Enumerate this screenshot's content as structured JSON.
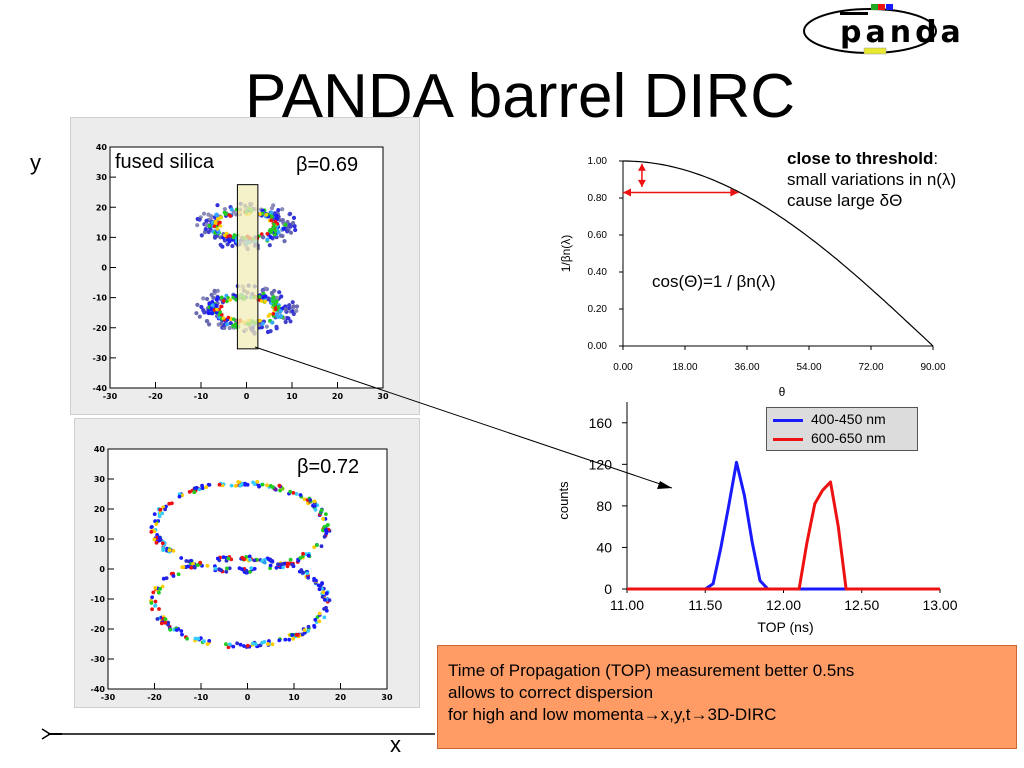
{
  "slide": {
    "title": "PANDA barrel DIRC",
    "logo_text": "panda",
    "y_axis_letter": "y",
    "x_axis_letter": "x"
  },
  "ring_plots": {
    "top": {
      "material_label": "fused silica",
      "beta_label": "β=0.69",
      "x_ticks": [
        "-30",
        "-20",
        "-10",
        "0",
        "10",
        "20",
        "30"
      ],
      "y_ticks": [
        "40",
        "30",
        "20",
        "10",
        "0",
        "-10",
        "-20",
        "-30",
        "-40"
      ]
    },
    "bottom": {
      "beta_label": "β=0.72",
      "x_ticks": [
        "-30",
        "-20",
        "-10",
        "0",
        "10",
        "20",
        "30"
      ],
      "y_ticks": [
        "40",
        "30",
        "20",
        "10",
        "0",
        "-10",
        "-20",
        "-30",
        "-40"
      ]
    }
  },
  "threshold_note": {
    "bold": "close to threshold",
    "colon": ":",
    "line2": "small variations in n(λ)",
    "line3": "cause large δΘ"
  },
  "formula": "cos(Θ)=1 / βn(λ)",
  "top_box": {
    "line1": "Time of Propagation (TOP) measurement better 0.5ns",
    "line2": "allows to correct dispersion",
    "line3": "for high and low momenta→x,y,t→3D-DIRC"
  },
  "colors": {
    "blue": "#1a1aff",
    "red": "#ee1111",
    "box_fill": "#ff9c66",
    "highlight": "#f2eeb8"
  },
  "chart_data": [
    {
      "type": "line",
      "title": "",
      "xlabel": "θ",
      "ylabel": "1/βn(λ)",
      "x_ticks": [
        "0.00",
        "18.00",
        "36.00",
        "54.00",
        "72.00",
        "90.00"
      ],
      "y_ticks": [
        "0.00",
        "0.20",
        "0.40",
        "0.60",
        "0.80",
        "1.00"
      ],
      "xlim": [
        0,
        90
      ],
      "ylim": [
        0,
        1
      ],
      "function": "cos",
      "x": [
        0,
        10,
        20,
        30,
        40,
        50,
        60,
        70,
        80,
        90
      ],
      "y": [
        1.0,
        0.985,
        0.94,
        0.866,
        0.766,
        0.643,
        0.5,
        0.342,
        0.174,
        0.0
      ]
    },
    {
      "type": "line",
      "title": "",
      "xlabel": "TOP (ns)",
      "ylabel": "counts",
      "x_ticks": [
        "11.00",
        "11.50",
        "12.00",
        "12.50",
        "13.00"
      ],
      "y_ticks": [
        "0",
        "40",
        "80",
        "120",
        "160"
      ],
      "xlim": [
        11,
        13
      ],
      "ylim": [
        0,
        180
      ],
      "series": [
        {
          "name": "400-450 nm",
          "color": "#1a1aff",
          "x": [
            11.0,
            11.5,
            11.55,
            11.6,
            11.65,
            11.7,
            11.75,
            11.8,
            11.85,
            11.9,
            13.0
          ],
          "y": [
            0,
            0,
            5,
            40,
            80,
            122,
            90,
            45,
            8,
            0,
            0
          ]
        },
        {
          "name": "600-650 nm",
          "color": "#ee1111",
          "x": [
            11.0,
            12.0,
            12.1,
            12.15,
            12.2,
            12.25,
            12.3,
            12.35,
            12.4,
            13.0
          ],
          "y": [
            0,
            0,
            0,
            45,
            82,
            95,
            103,
            60,
            0,
            0
          ]
        }
      ]
    }
  ]
}
